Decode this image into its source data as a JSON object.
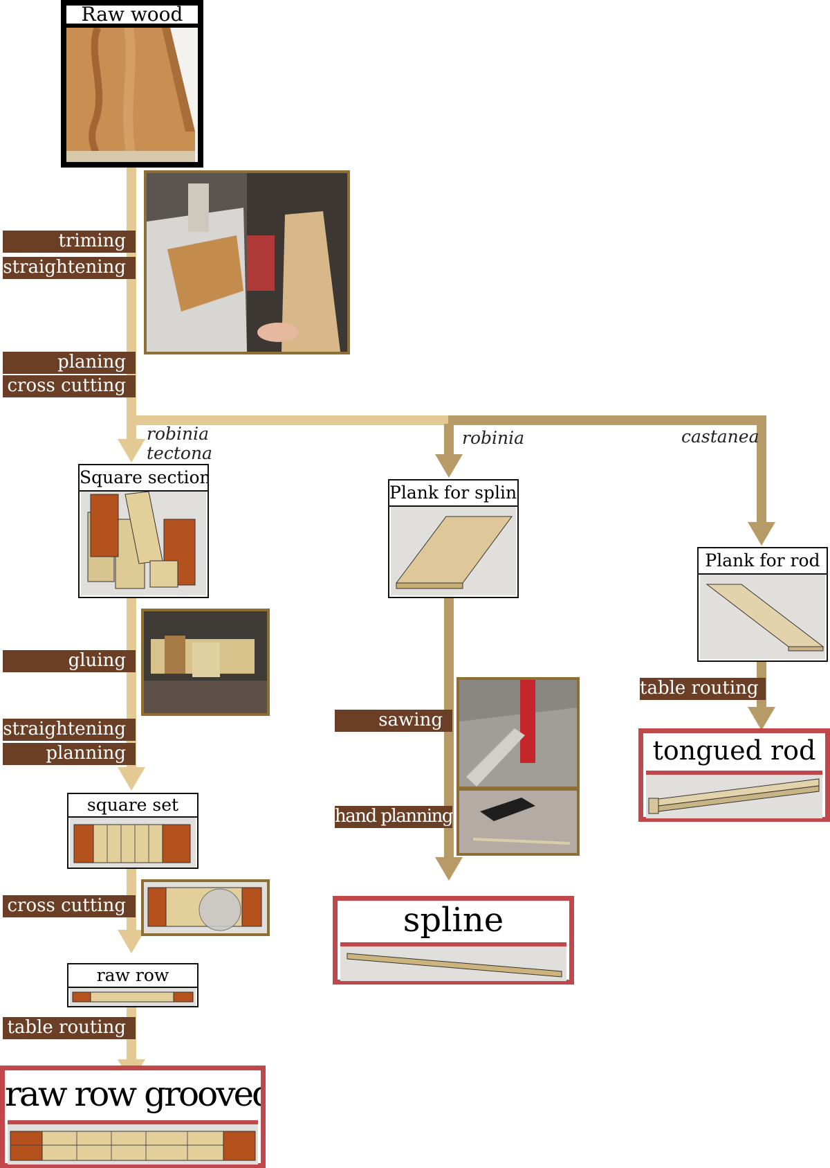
{
  "colors": {
    "main_arrow": "#e3c994",
    "branch_arrow": "#b69b67",
    "step_bg": "#6b3f26",
    "final_border": "#c0474a",
    "photo_border": "#8d6e33"
  },
  "start": {
    "title": "Raw wood"
  },
  "branches": {
    "left": {
      "species": [
        "robinia",
        "tectona"
      ],
      "steps_before_split": [
        "triming",
        "straightening",
        "planing",
        "cross cutting"
      ],
      "product": "Square section",
      "steps_1": [
        "gluing",
        "straightening",
        "planning"
      ],
      "product_2": "square set",
      "steps_2": [
        "cross cutting"
      ],
      "product_3": "raw row",
      "steps_3": [
        "table routing"
      ],
      "final": "raw row grooved"
    },
    "middle": {
      "species": "robinia",
      "product": "Plank for spline",
      "steps": [
        "sawing",
        "hand planning"
      ],
      "final": "spline"
    },
    "right": {
      "species": "castanea",
      "product": "Plank for rod",
      "steps": [
        "table routing"
      ],
      "final": "tongued rod"
    }
  }
}
